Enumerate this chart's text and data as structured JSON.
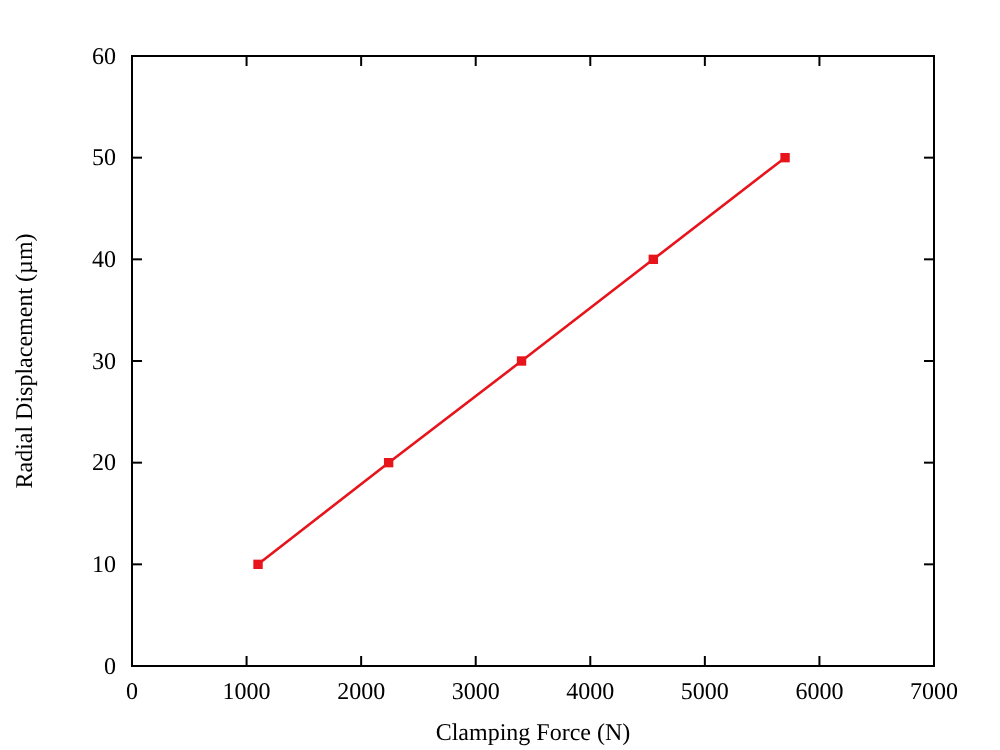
{
  "chart_data": {
    "type": "line",
    "xlabel": "Clamping Force (N)",
    "ylabel": "Radial Displacement (µm)",
    "x": [
      1100,
      2240,
      3400,
      4550,
      5700
    ],
    "series": [
      {
        "color": "#e8141b",
        "values": [
          10,
          20,
          30,
          40,
          50
        ]
      }
    ],
    "xlim": [
      0,
      7000
    ],
    "xticks": [
      0,
      1000,
      2000,
      3000,
      4000,
      5000,
      6000,
      7000
    ],
    "ylim": [
      0,
      60
    ],
    "yticks": [
      0,
      10,
      20,
      30,
      40,
      50,
      60
    ],
    "grid": false,
    "marker": "square",
    "line_style": "solid"
  }
}
